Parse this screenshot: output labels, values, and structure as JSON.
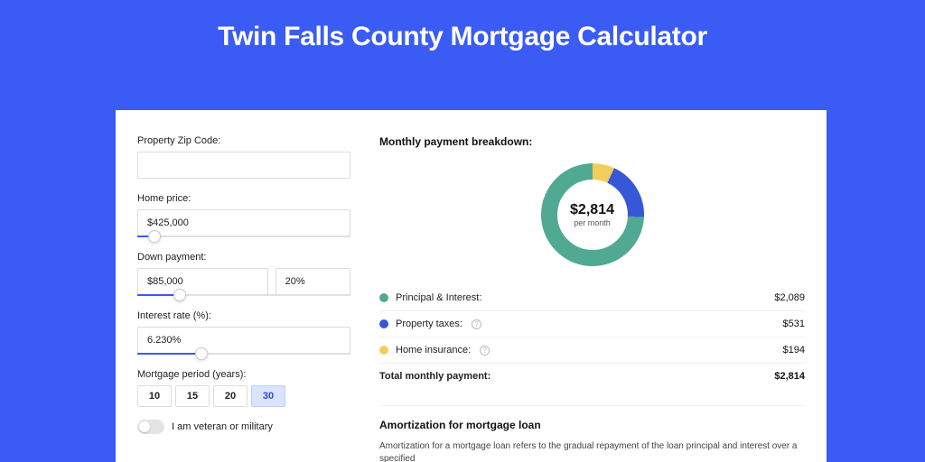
{
  "page_title": "Twin Falls County Mortgage Calculator",
  "colors": {
    "bg": "#3a5cf4",
    "accent": "#3a5cf4",
    "pi": "#51a993",
    "tax": "#3658d6",
    "ins": "#f2cd5c"
  },
  "form": {
    "zip_label": "Property Zip Code:",
    "zip_value": "",
    "price_label": "Home price:",
    "price_value": "$425,000",
    "price_slider_pct": 8,
    "down_label": "Down payment:",
    "down_value": "$85,000",
    "down_pct": "20%",
    "down_slider_pct": 20,
    "rate_label": "Interest rate (%):",
    "rate_value": "6.230%",
    "rate_slider_pct": 30,
    "period_label": "Mortgage period (years):",
    "periods": [
      "10",
      "15",
      "20",
      "30"
    ],
    "period_selected": 3,
    "veteran_label": "I am veteran or military"
  },
  "breakdown": {
    "title": "Monthly payment breakdown:",
    "donut": {
      "total_label": "$2,814",
      "sub_label": "per month",
      "slices": [
        {
          "label": "Principal & Interest",
          "pct": 74.2,
          "color": "#51a993"
        },
        {
          "label": "Property taxes",
          "pct": 18.9,
          "color": "#3658d6"
        },
        {
          "label": "Home insurance",
          "pct": 6.9,
          "color": "#f2cd5c"
        }
      ]
    },
    "rows": [
      {
        "color": "#51a993",
        "label": "Principal & Interest:",
        "amount": "$2,089",
        "info": false
      },
      {
        "color": "#3658d6",
        "label": "Property taxes:",
        "amount": "$531",
        "info": true
      },
      {
        "color": "#f2cd5c",
        "label": "Home insurance:",
        "amount": "$194",
        "info": true
      }
    ],
    "total_label": "Total monthly payment:",
    "total_amount": "$2,814"
  },
  "amort": {
    "title": "Amortization for mortgage loan",
    "text": "Amortization for a mortgage loan refers to the gradual repayment of the loan principal and interest over a specified"
  }
}
